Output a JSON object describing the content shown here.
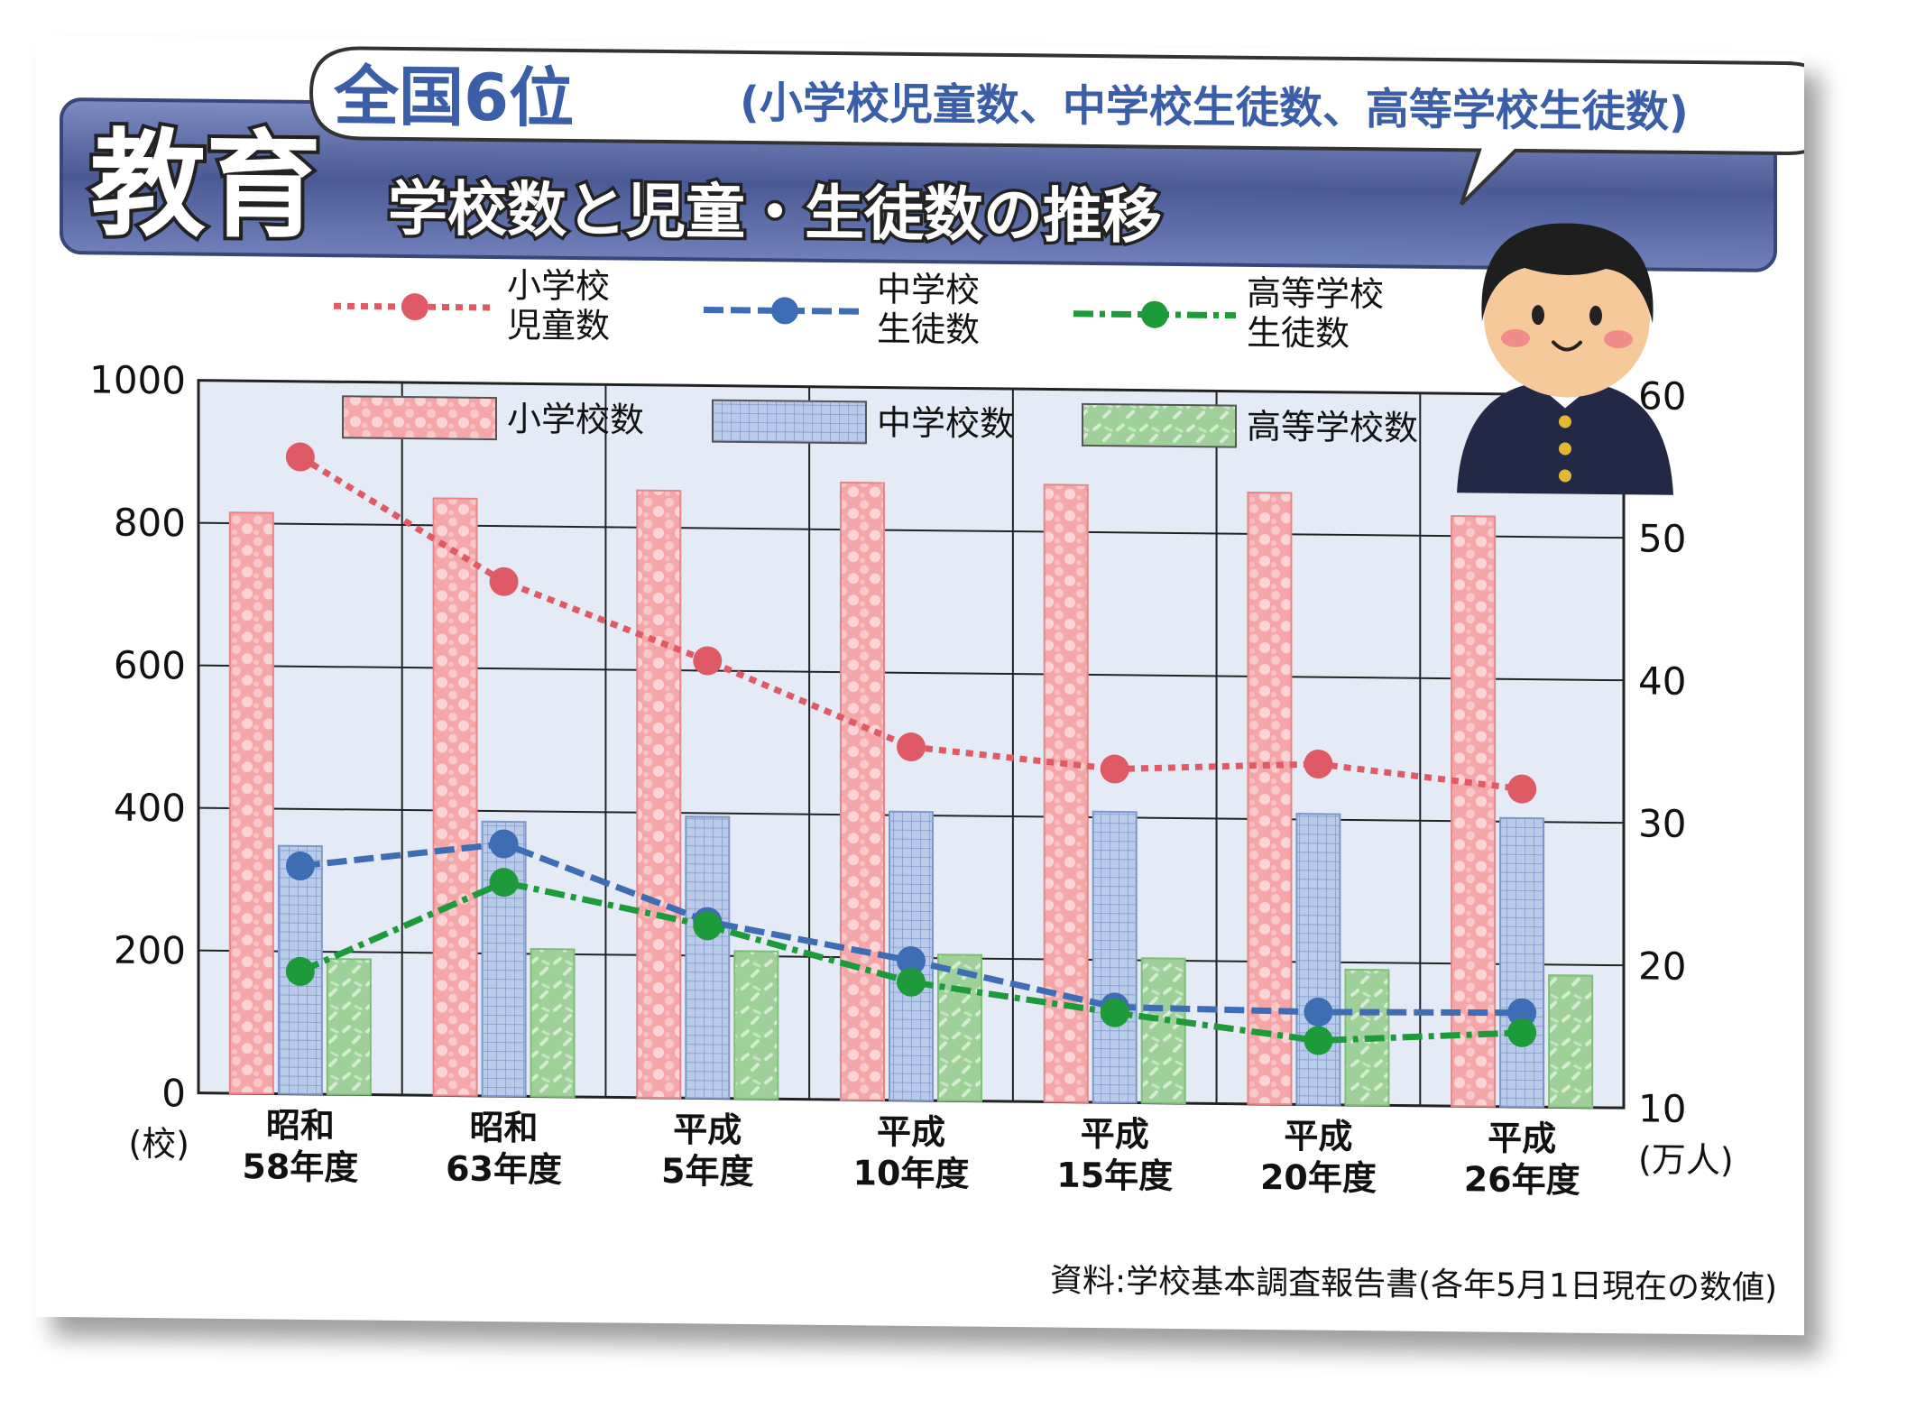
{
  "title": {
    "main": "教育",
    "sub": "学校数と児童・生徒数の推移",
    "rank_main": "全国6位",
    "rank_note": "(小学校児童数、中学校生徒数、高等学校生徒数)"
  },
  "source": "資料:学校基本調査報告書(各年5月1日現在の数値)",
  "colors": {
    "elem": "#f4a6a8",
    "elem_line": "#e05a66",
    "junior": "#a9bde0",
    "junior_line": "#3e6db5",
    "high": "#9fd09a",
    "high_line": "#1d9a3a",
    "header_band": "#4a5a94",
    "plot_bg": "#e4ebf6"
  },
  "chart_data": {
    "type": "bar",
    "categories": [
      [
        "昭和",
        "58年度"
      ],
      [
        "昭和",
        "63年度"
      ],
      [
        "平成",
        "5年度"
      ],
      [
        "平成",
        "10年度"
      ],
      [
        "平成",
        "15年度"
      ],
      [
        "平成",
        "20年度"
      ],
      [
        "平成",
        "26年度"
      ]
    ],
    "left_axis": {
      "unit": "(校)",
      "ylim": [
        0,
        1000
      ],
      "ticks": [
        "0",
        "200",
        "400",
        "600",
        "800",
        "1000"
      ]
    },
    "right_axis": {
      "unit": "(万人)",
      "ylim": [
        10,
        60
      ],
      "ticks": [
        "10",
        "20",
        "30",
        "40",
        "50",
        "60"
      ]
    },
    "bar_series": [
      {
        "name": "小学校数",
        "values": [
          815,
          838,
          852,
          866,
          866,
          858,
          828
        ]
      },
      {
        "name": "中学校数",
        "values": [
          348,
          385,
          395,
          405,
          408,
          408,
          405
        ]
      },
      {
        "name": "高等学校数",
        "values": [
          190,
          207,
          207,
          205,
          203,
          190,
          185
        ]
      }
    ],
    "line_series": [
      {
        "name": [
          "小学校",
          "児童数"
        ],
        "values": [
          54.7,
          46.1,
          40.7,
          34.8,
          33.4,
          33.9,
          32.3
        ]
      },
      {
        "name": [
          "中学校",
          "生徒数"
        ],
        "values": [
          26.0,
          27.7,
          22.4,
          19.8,
          16.7,
          16.5,
          16.6
        ]
      },
      {
        "name": [
          "高等学校",
          "生徒数"
        ],
        "values": [
          18.6,
          25.0,
          22.1,
          18.3,
          16.3,
          14.5,
          15.2
        ]
      }
    ],
    "grid": true
  }
}
